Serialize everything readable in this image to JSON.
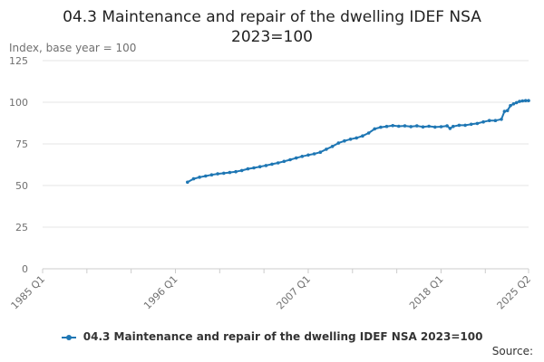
{
  "chart_data": {
    "type": "line",
    "title_lines": [
      "04.3 Maintenance and repair of the dwelling IDEF NSA",
      "2023=100"
    ],
    "ylabel": "Index, base year = 100",
    "xlabel": "",
    "ylim": [
      0,
      125
    ],
    "yticks": [
      0,
      25,
      50,
      75,
      100,
      125
    ],
    "xlim": [
      1985.0,
      2025.25
    ],
    "xticks": [
      {
        "label": "1985 Q1",
        "x": 1985.0
      },
      {
        "label": "1996 Q1",
        "x": 1996.0
      },
      {
        "label": "2007 Q1",
        "x": 2007.0
      },
      {
        "label": "2018 Q1",
        "x": 2018.0
      },
      {
        "label": "2025 Q2",
        "x": 2025.25
      }
    ],
    "grid": true,
    "legend_position": "bottom",
    "source_label": "Source:",
    "color": "#1f77b4",
    "series": [
      {
        "name": "04.3 Maintenance and repair of the dwelling IDEF NSA 2023=100",
        "points": [
          [
            1997.0,
            52
          ],
          [
            1997.5,
            54
          ],
          [
            1998.0,
            55
          ],
          [
            1998.5,
            55.7
          ],
          [
            1999.0,
            56.4
          ],
          [
            1999.5,
            57
          ],
          [
            2000.0,
            57.4
          ],
          [
            2000.5,
            57.8
          ],
          [
            2001.0,
            58.3
          ],
          [
            2001.5,
            59
          ],
          [
            2002.0,
            60
          ],
          [
            2002.5,
            60.6
          ],
          [
            2003.0,
            61.3
          ],
          [
            2003.5,
            62
          ],
          [
            2004.0,
            62.8
          ],
          [
            2004.5,
            63.6
          ],
          [
            2005.0,
            64.5
          ],
          [
            2005.5,
            65.5
          ],
          [
            2006.0,
            66.5
          ],
          [
            2006.5,
            67.5
          ],
          [
            2007.0,
            68.3
          ],
          [
            2007.5,
            69
          ],
          [
            2008.0,
            70
          ],
          [
            2008.5,
            71.8
          ],
          [
            2009.0,
            73.5
          ],
          [
            2009.5,
            75.5
          ],
          [
            2010.0,
            76.8
          ],
          [
            2010.5,
            77.8
          ],
          [
            2011.0,
            78.6
          ],
          [
            2011.5,
            79.8
          ],
          [
            2012.0,
            81.5
          ],
          [
            2012.5,
            84
          ],
          [
            2013.0,
            85
          ],
          [
            2013.5,
            85.5
          ],
          [
            2014.0,
            86
          ],
          [
            2014.5,
            85.6
          ],
          [
            2015.0,
            85.8
          ],
          [
            2015.5,
            85.4
          ],
          [
            2016.0,
            85.8
          ],
          [
            2016.5,
            85.2
          ],
          [
            2017.0,
            85.6
          ],
          [
            2017.5,
            85.1
          ],
          [
            2018.0,
            85.3
          ],
          [
            2018.5,
            85.8
          ],
          [
            2018.75,
            84.3
          ],
          [
            2019.0,
            85.5
          ],
          [
            2019.5,
            86.2
          ],
          [
            2020.0,
            86.2
          ],
          [
            2020.5,
            86.8
          ],
          [
            2021.0,
            87.3
          ],
          [
            2021.5,
            88.2
          ],
          [
            2022.0,
            89
          ],
          [
            2022.5,
            89
          ],
          [
            2023.0,
            89.8
          ],
          [
            2023.25,
            94.5
          ],
          [
            2023.5,
            95
          ],
          [
            2023.75,
            98
          ],
          [
            2024.0,
            99
          ],
          [
            2024.25,
            99.8
          ],
          [
            2024.5,
            100.5
          ],
          [
            2024.75,
            100.8
          ],
          [
            2025.0,
            101
          ],
          [
            2025.25,
            101
          ]
        ]
      }
    ]
  }
}
